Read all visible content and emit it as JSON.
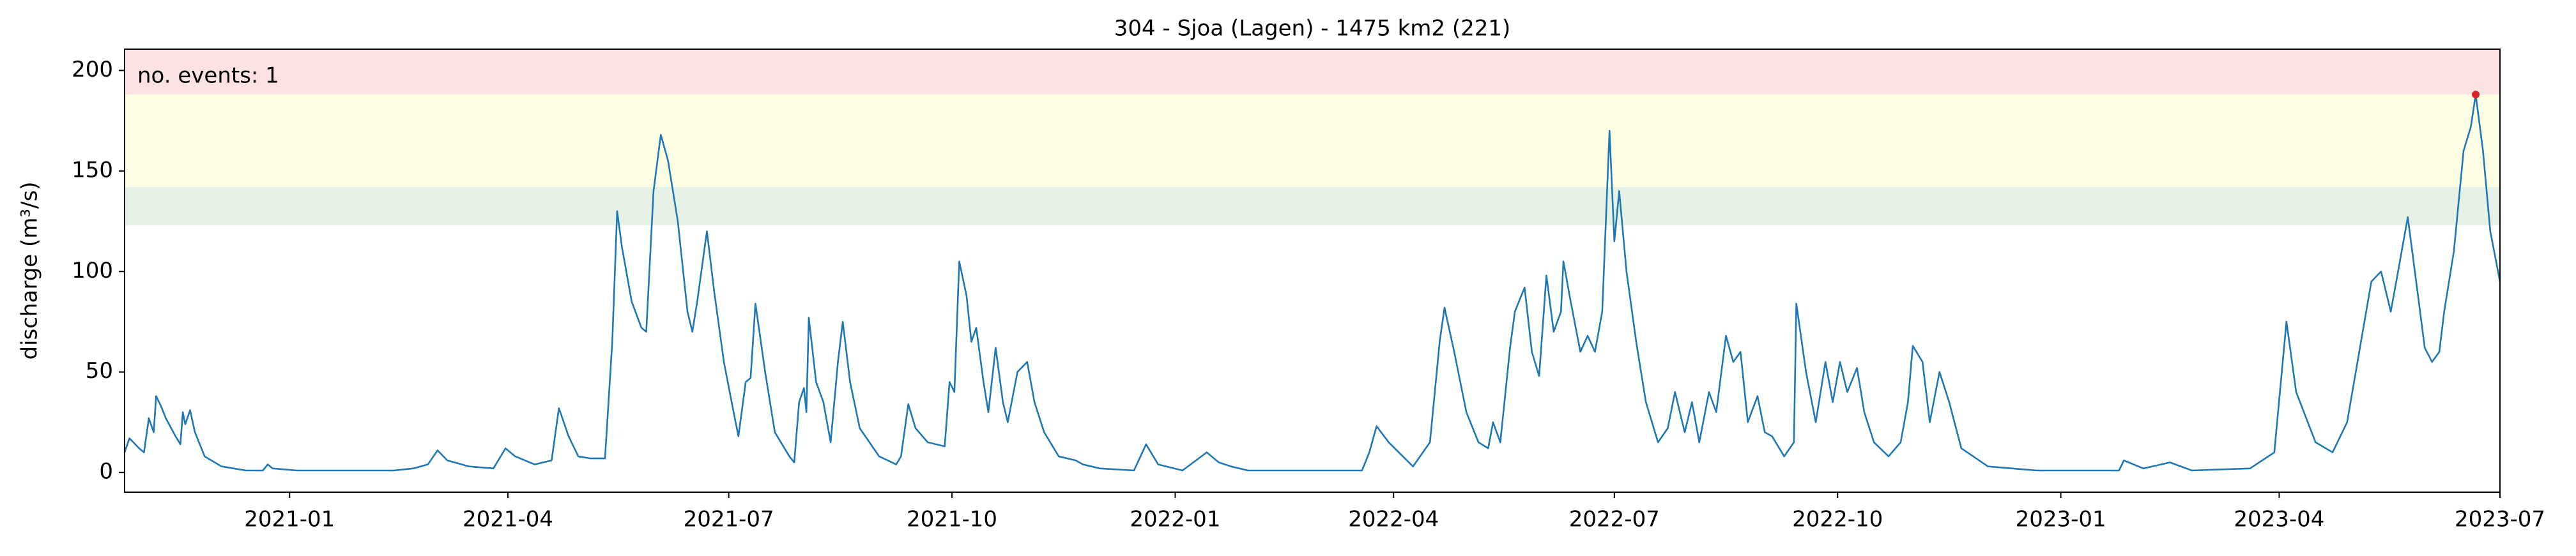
{
  "chart_data": {
    "type": "line",
    "title": "304 - Sjoa (Lagen) - 1475 km2 (221)",
    "y_label": "discharge (m³/s)",
    "annotation": "no. events: 1",
    "annotation_color": "#d62728",
    "bands": [
      {
        "from": 123,
        "to": 142,
        "color": "#e5f1e5"
      },
      {
        "from": 142,
        "to": 188,
        "color": "#fefee4"
      },
      {
        "from": 188,
        "to": 210.6,
        "color": "#fde2e4"
      }
    ],
    "xlim": [
      "2020-10-25",
      "2023-07-01"
    ],
    "xticks": [
      "2021-01",
      "2021-04",
      "2021-07",
      "2021-10",
      "2022-01",
      "2022-04",
      "2022-07",
      "2022-10",
      "2023-01",
      "2023-04",
      "2023-07"
    ],
    "ylim": [
      -9.8,
      210.6
    ],
    "yticks": [
      0,
      50,
      100,
      150,
      200
    ],
    "x": [
      "2020-10-25",
      "2020-10-27",
      "2020-10-31",
      "2020-11-02",
      "2020-11-04",
      "2020-11-06",
      "2020-11-07",
      "2020-11-09",
      "2020-11-11",
      "2020-11-15",
      "2020-11-17",
      "2020-11-18",
      "2020-11-19",
      "2020-11-21",
      "2020-11-23",
      "2020-11-27",
      "2020-12-04",
      "2020-12-14",
      "2020-12-21",
      "2020-12-23",
      "2020-12-25",
      "2021-01-04",
      "2021-02-13",
      "2021-02-21",
      "2021-02-27",
      "2021-03-03",
      "2021-03-07",
      "2021-03-16",
      "2021-03-26",
      "2021-03-31",
      "2021-04-04",
      "2021-04-12",
      "2021-04-19",
      "2021-04-22",
      "2021-04-26",
      "2021-04-30",
      "2021-05-05",
      "2021-05-11",
      "2021-05-14",
      "2021-05-16",
      "2021-05-18",
      "2021-05-22",
      "2021-05-26",
      "2021-05-28",
      "2021-05-31",
      "2021-06-03",
      "2021-06-06",
      "2021-06-10",
      "2021-06-14",
      "2021-06-16",
      "2021-06-18",
      "2021-06-22",
      "2021-06-25",
      "2021-06-29",
      "2021-07-03",
      "2021-07-05",
      "2021-07-08",
      "2021-07-10",
      "2021-07-12",
      "2021-07-16",
      "2021-07-20",
      "2021-07-26",
      "2021-07-28",
      "2021-07-30",
      "2021-08-01",
      "2021-08-02",
      "2021-08-03",
      "2021-08-06",
      "2021-08-09",
      "2021-08-12",
      "2021-08-15",
      "2021-08-17",
      "2021-08-20",
      "2021-08-24",
      "2021-09-01",
      "2021-09-08",
      "2021-09-10",
      "2021-09-13",
      "2021-09-16",
      "2021-09-21",
      "2021-09-28",
      "2021-09-30",
      "2021-10-02",
      "2021-10-04",
      "2021-10-07",
      "2021-10-09",
      "2021-10-11",
      "2021-10-14",
      "2021-10-16",
      "2021-10-19",
      "2021-10-22",
      "2021-10-24",
      "2021-10-28",
      "2021-11-01",
      "2021-11-04",
      "2021-11-08",
      "2021-11-14",
      "2021-11-21",
      "2021-11-24",
      "2021-12-01",
      "2021-12-15",
      "2021-12-20",
      "2021-12-25",
      "2022-01-04",
      "2022-01-14",
      "2022-01-19",
      "2022-01-24",
      "2022-01-31",
      "2022-03-19",
      "2022-03-22",
      "2022-03-25",
      "2022-03-30",
      "2022-04-09",
      "2022-04-16",
      "2022-04-20",
      "2022-04-22",
      "2022-04-26",
      "2022-05-01",
      "2022-05-06",
      "2022-05-10",
      "2022-05-12",
      "2022-05-15",
      "2022-05-19",
      "2022-05-21",
      "2022-05-25",
      "2022-05-28",
      "2022-05-31",
      "2022-06-03",
      "2022-06-06",
      "2022-06-09",
      "2022-06-10",
      "2022-06-13",
      "2022-06-17",
      "2022-06-20",
      "2022-06-23",
      "2022-06-26",
      "2022-06-29",
      "2022-07-01",
      "2022-07-03",
      "2022-07-06",
      "2022-07-10",
      "2022-07-14",
      "2022-07-19",
      "2022-07-23",
      "2022-07-26",
      "2022-07-30",
      "2022-08-02",
      "2022-08-05",
      "2022-08-09",
      "2022-08-12",
      "2022-08-16",
      "2022-08-19",
      "2022-08-22",
      "2022-08-25",
      "2022-08-29",
      "2022-09-01",
      "2022-09-04",
      "2022-09-09",
      "2022-09-13",
      "2022-09-14",
      "2022-09-18",
      "2022-09-22",
      "2022-09-26",
      "2022-09-29",
      "2022-10-02",
      "2022-10-05",
      "2022-10-09",
      "2022-10-12",
      "2022-10-16",
      "2022-10-22",
      "2022-10-27",
      "2022-10-30",
      "2022-11-01",
      "2022-11-05",
      "2022-11-08",
      "2022-11-12",
      "2022-11-16",
      "2022-11-21",
      "2022-12-02",
      "2022-12-22",
      "2023-01-25",
      "2023-01-27",
      "2023-02-04",
      "2023-02-15",
      "2023-02-24",
      "2023-03-20",
      "2023-03-25",
      "2023-03-30",
      "2023-04-04",
      "2023-04-08",
      "2023-04-16",
      "2023-04-23",
      "2023-04-29",
      "2023-05-04",
      "2023-05-09",
      "2023-05-13",
      "2023-05-17",
      "2023-05-20",
      "2023-05-24",
      "2023-05-28",
      "2023-05-31",
      "2023-06-03",
      "2023-06-06",
      "2023-06-08",
      "2023-06-12",
      "2023-06-16",
      "2023-06-19",
      "2023-06-21",
      "2023-06-24",
      "2023-06-27",
      "2023-07-01"
    ],
    "series": [
      {
        "color": "#1f77b4",
        "values": [
          10,
          17,
          12,
          10,
          27,
          20,
          38,
          33,
          27,
          18,
          14,
          30,
          24,
          31,
          20,
          8,
          3,
          1,
          1,
          4,
          2,
          1,
          1,
          2,
          4,
          11,
          6,
          3,
          2,
          12,
          8,
          4,
          6,
          32,
          18,
          8,
          7,
          7,
          65,
          130,
          112,
          85,
          72,
          70,
          140,
          168,
          155,
          125,
          80,
          70,
          85,
          120,
          90,
          55,
          30,
          18,
          45,
          47,
          84,
          50,
          20,
          8,
          5,
          35,
          42,
          30,
          77,
          45,
          35,
          15,
          55,
          75,
          45,
          22,
          8,
          4,
          8,
          34,
          22,
          15,
          13,
          45,
          40,
          105,
          88,
          65,
          72,
          45,
          30,
          62,
          35,
          25,
          50,
          55,
          35,
          20,
          8,
          6,
          4,
          2,
          1,
          14,
          4,
          1,
          10,
          5,
          3,
          1,
          1,
          10,
          23,
          15,
          3,
          15,
          65,
          82,
          60,
          30,
          15,
          12,
          25,
          15,
          62,
          80,
          92,
          60,
          48,
          98,
          70,
          80,
          105,
          85,
          60,
          68,
          60,
          80,
          170,
          115,
          140,
          100,
          65,
          35,
          15,
          22,
          40,
          20,
          35,
          15,
          40,
          30,
          68,
          55,
          60,
          25,
          38,
          20,
          18,
          8,
          15,
          84,
          50,
          25,
          55,
          35,
          55,
          40,
          52,
          30,
          15,
          8,
          15,
          35,
          63,
          55,
          25,
          50,
          35,
          12,
          3,
          1,
          1,
          6,
          2,
          5,
          1,
          2,
          6,
          10,
          75,
          40,
          15,
          10,
          25,
          60,
          95,
          100,
          80,
          100,
          127,
          90,
          62,
          55,
          60,
          80,
          110,
          160,
          172,
          188,
          160,
          120,
          95
        ]
      }
    ]
  }
}
